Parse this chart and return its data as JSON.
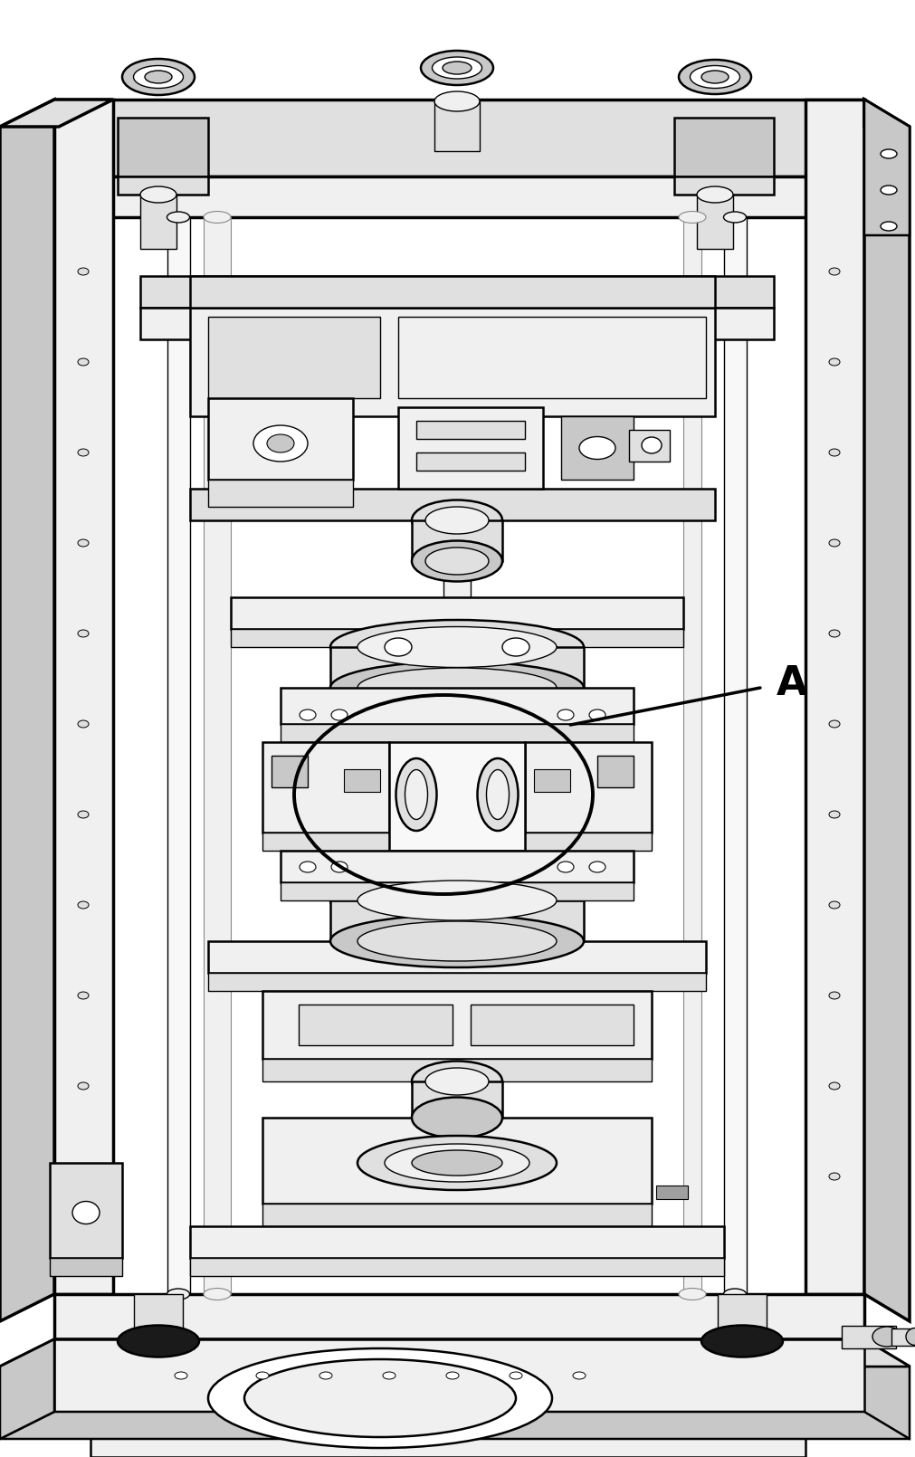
{
  "figure_width": 10.11,
  "figure_height": 16.1,
  "dpi": 100,
  "bg_color": "#ffffff",
  "label_A": "A",
  "label_A_fontsize": 32,
  "label_A_fontweight": "bold",
  "ellipse_lw": 2.8,
  "line_color": "#000000",
  "lw_thick": 2.5,
  "lw_med": 1.8,
  "lw_thin": 1.0,
  "fill_light": "#f0f0f0",
  "fill_mid": "#e0e0e0",
  "fill_dark": "#c8c8c8",
  "fill_darkest": "#a0a0a0"
}
